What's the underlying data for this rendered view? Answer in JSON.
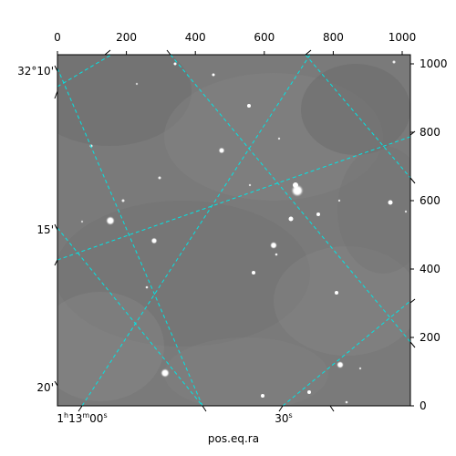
{
  "axes": {
    "xlabel": "pos.eq.ra",
    "top_ticks": [
      "0",
      "200",
      "400",
      "600",
      "800",
      "1000"
    ],
    "right_ticks": [
      "1000",
      "800",
      "600",
      "400",
      "200",
      "0"
    ],
    "ra_ticks": [
      {
        "h": "1",
        "m": "13",
        "s": "00"
      },
      {
        "s": "30"
      }
    ],
    "dec_ticks": [
      "32°10'",
      "15'",
      "20'"
    ],
    "pixel_range": [
      0,
      1024
    ]
  },
  "colors": {
    "grid": "#00e5e5",
    "background": "#808080"
  }
}
